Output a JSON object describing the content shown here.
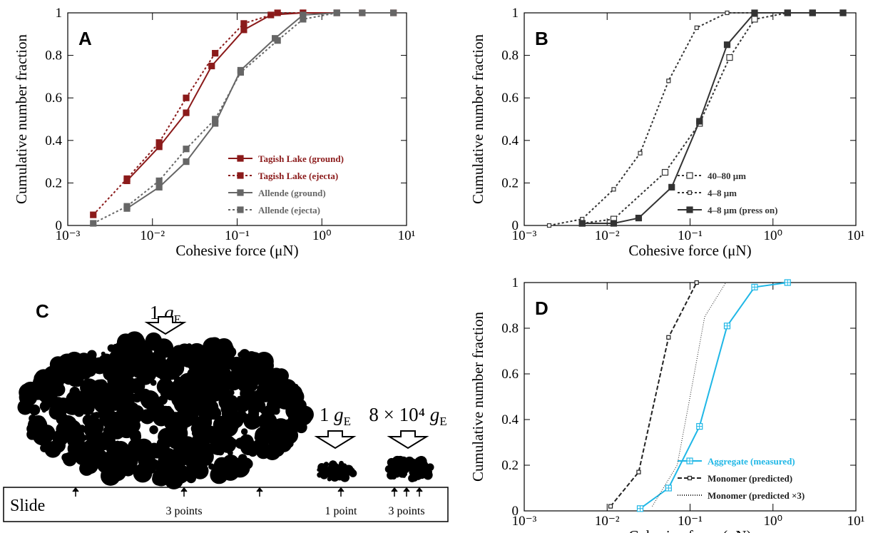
{
  "chart_data": [
    {
      "type": "line",
      "panel": "A",
      "xscale": "log",
      "xlabel": "Cohesive force (μN)",
      "ylabel": "Cumulative number fraction",
      "xlim": [
        0.001,
        10
      ],
      "xticks": [
        {
          "value": 0.001,
          "label": "10⁻³"
        },
        {
          "value": 0.01,
          "label": "10⁻²"
        },
        {
          "value": 0.1,
          "label": "10⁻¹"
        },
        {
          "value": 1,
          "label": "10⁰"
        },
        {
          "value": 10,
          "label": "10¹"
        }
      ],
      "ylim": [
        0,
        1
      ],
      "yticks": [
        0,
        0.2,
        0.4,
        0.6,
        0.8,
        1
      ],
      "legend": "lower right",
      "series": [
        {
          "name": "Tagish Lake (ground)",
          "color": "#8b1a1a",
          "dash": "solid",
          "marker": "filled-square",
          "x": [
            0.005,
            0.012,
            0.025,
            0.05,
            0.12,
            0.25,
            0.6,
            1.5,
            3,
            7
          ],
          "values": [
            0.21,
            0.37,
            0.53,
            0.75,
            0.92,
            0.99,
            1,
            1,
            1,
            1
          ]
        },
        {
          "name": "Tagish Lake (ejecta)",
          "color": "#8b1a1a",
          "dash": "dotted",
          "marker": "filled-square",
          "x": [
            0.002,
            0.005,
            0.012,
            0.025,
            0.055,
            0.12,
            0.3,
            0.6
          ],
          "values": [
            0.05,
            0.22,
            0.39,
            0.6,
            0.81,
            0.95,
            1,
            1
          ]
        },
        {
          "name": "Allende (ground)",
          "color": "#666666",
          "dash": "solid",
          "marker": "filled-square",
          "x": [
            0.005,
            0.012,
            0.025,
            0.055,
            0.11,
            0.28,
            0.6,
            1.5,
            3,
            7
          ],
          "values": [
            0.08,
            0.18,
            0.3,
            0.48,
            0.73,
            0.88,
            0.99,
            1,
            1,
            1
          ]
        },
        {
          "name": "Allende (ejecta)",
          "color": "#666666",
          "dash": "dotted",
          "marker": "filled-square",
          "x": [
            0.002,
            0.005,
            0.012,
            0.025,
            0.055,
            0.11,
            0.3,
            0.6,
            1.5
          ],
          "values": [
            0.01,
            0.09,
            0.21,
            0.36,
            0.5,
            0.72,
            0.87,
            0.97,
            1
          ]
        }
      ]
    },
    {
      "type": "line",
      "panel": "B",
      "xscale": "log",
      "xlabel": "Cohesive force (μN)",
      "ylabel": "Cumulative number fraction",
      "xlim": [
        0.001,
        10
      ],
      "xticks": [
        {
          "value": 0.001,
          "label": "10⁻³"
        },
        {
          "value": 0.01,
          "label": "10⁻²"
        },
        {
          "value": 0.1,
          "label": "10⁻¹"
        },
        {
          "value": 1,
          "label": "10⁰"
        },
        {
          "value": 10,
          "label": "10¹"
        }
      ],
      "ylim": [
        0,
        1
      ],
      "yticks": [
        0,
        0.2,
        0.4,
        0.6,
        0.8,
        1
      ],
      "legend": "lower right",
      "series": [
        {
          "name": "40–80 μm",
          "color": "#333333",
          "dash": "dotted",
          "marker": "open-square",
          "x": [
            0.005,
            0.012,
            0.05,
            0.13,
            0.3,
            0.6,
            1.5,
            3,
            7
          ],
          "values": [
            0.01,
            0.03,
            0.25,
            0.48,
            0.79,
            0.97,
            1,
            1,
            1
          ]
        },
        {
          "name": "4–8 μm",
          "color": "#333333",
          "dash": "dotted",
          "marker": "small-open-square",
          "x": [
            0.002,
            0.005,
            0.012,
            0.025,
            0.055,
            0.12,
            0.28,
            0.6
          ],
          "values": [
            0,
            0.03,
            0.17,
            0.34,
            0.68,
            0.93,
            1,
            1
          ]
        },
        {
          "name": "4–8 μm (press on)",
          "color": "#333333",
          "dash": "solid",
          "marker": "filled-square",
          "x": [
            0.005,
            0.012,
            0.024,
            0.06,
            0.13,
            0.28,
            0.6,
            1.5,
            3,
            7
          ],
          "values": [
            0.01,
            0.01,
            0.035,
            0.18,
            0.49,
            0.85,
            1,
            1,
            1,
            1
          ]
        }
      ]
    },
    {
      "type": "line",
      "panel": "D",
      "xscale": "log",
      "xlabel": "Cohesive force (μN)",
      "ylabel": "Cumulative number fraction",
      "xlim": [
        0.001,
        10
      ],
      "xticks": [
        {
          "value": 0.001,
          "label": "10⁻³"
        },
        {
          "value": 0.01,
          "label": "10⁻²"
        },
        {
          "value": 0.1,
          "label": "10⁻¹"
        },
        {
          "value": 1,
          "label": "10⁰"
        },
        {
          "value": 10,
          "label": "10¹"
        }
      ],
      "ylim": [
        0,
        1
      ],
      "yticks": [
        0,
        0.2,
        0.4,
        0.6,
        0.8,
        1
      ],
      "legend": "lower right",
      "series": [
        {
          "name": "Aggregate (measured)",
          "color": "#1fb7e6",
          "dash": "solid",
          "marker": "crossed-square",
          "x": [
            0.025,
            0.055,
            0.13,
            0.28,
            0.6,
            1.5
          ],
          "values": [
            0.01,
            0.1,
            0.37,
            0.81,
            0.98,
            1
          ]
        },
        {
          "name": "Monomer (predicted)",
          "color": "#222222",
          "dash": "dashed",
          "marker": "small-open-square",
          "x": [
            0.011,
            0.024,
            0.055,
            0.12
          ],
          "values": [
            0.02,
            0.17,
            0.76,
            1
          ]
        },
        {
          "name": "Monomer (predicted ×3)",
          "color": "#222222",
          "dash": "fine-dotted",
          "marker": "none",
          "x": [
            0.035,
            0.07,
            0.1,
            0.15,
            0.27
          ],
          "values": [
            0.02,
            0.2,
            0.5,
            0.85,
            1
          ]
        }
      ]
    }
  ],
  "diagram": {
    "panel": "C",
    "slide": "Slide",
    "force_labels": [
      {
        "factor": "1",
        "symbol": "g",
        "subscript": "E"
      },
      {
        "factor": "1",
        "symbol": "g",
        "subscript": "E"
      },
      {
        "factor": "8 × 10⁴",
        "symbol": "g",
        "subscript": "E"
      }
    ],
    "contact_labels": [
      "3 points",
      "1 point",
      "3 points"
    ]
  }
}
